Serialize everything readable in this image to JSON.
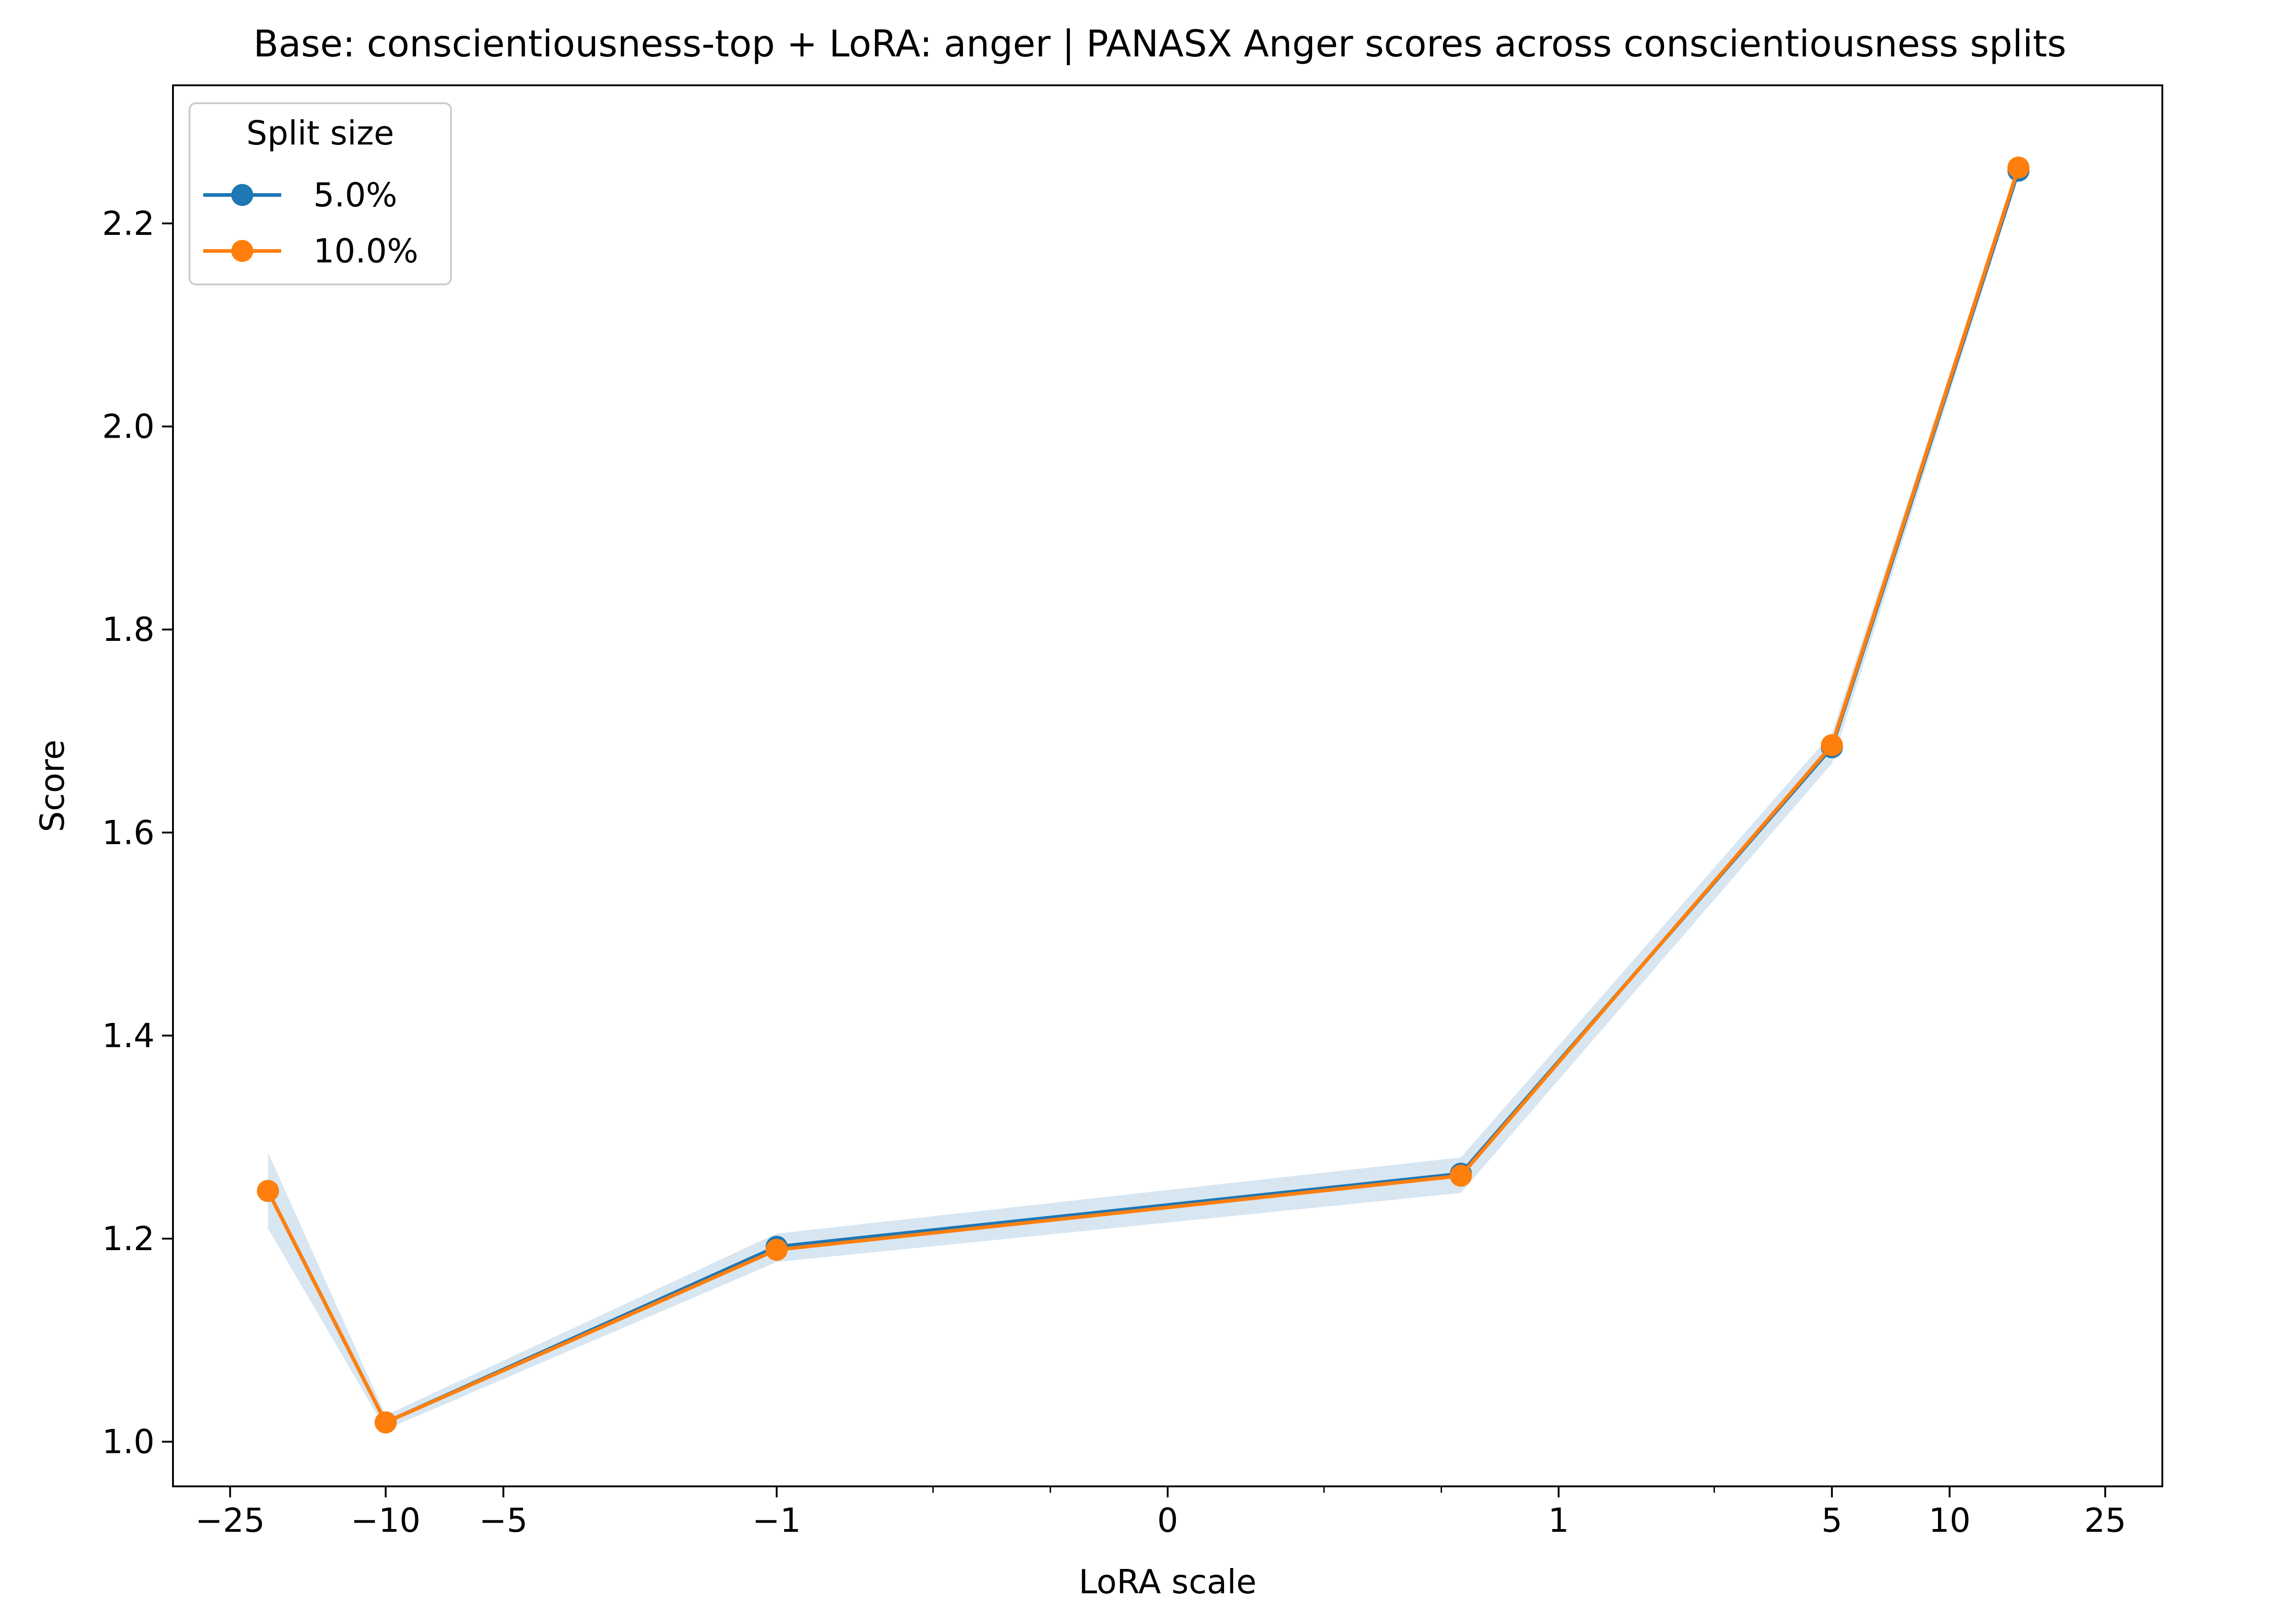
{
  "chart_data": {
    "type": "line",
    "title": "Base: conscientiousness-top + LoRA: anger | PANASX Anger scores across conscientiousness splits",
    "xlabel": "LoRA scale",
    "ylabel": "Score",
    "x_scale": "symlog",
    "x_ticks": [
      {
        "value": -25,
        "label": "−25"
      },
      {
        "value": -10,
        "label": "−10"
      },
      {
        "value": -5,
        "label": "−5"
      },
      {
        "value": -1,
        "label": "−1"
      },
      {
        "value": 0,
        "label": "0"
      },
      {
        "value": 1,
        "label": "1"
      },
      {
        "value": 5,
        "label": "5"
      },
      {
        "value": 10,
        "label": "10"
      },
      {
        "value": 25,
        "label": "25"
      }
    ],
    "ylim": [
      0.956,
      2.336
    ],
    "y_ticks": [
      {
        "value": 1.0,
        "label": "1.0"
      },
      {
        "value": 1.2,
        "label": "1.2"
      },
      {
        "value": 1.4,
        "label": "1.4"
      },
      {
        "value": 1.6,
        "label": "1.6"
      },
      {
        "value": 1.8,
        "label": "1.8"
      },
      {
        "value": 2.0,
        "label": "2.0"
      },
      {
        "value": 2.2,
        "label": "2.2"
      }
    ],
    "grid": false,
    "legend": {
      "title": "Split size",
      "position": "top-left"
    },
    "x": [
      -20,
      -10,
      -1,
      0.75,
      5,
      15
    ],
    "series": [
      {
        "name": "5.0%",
        "color": "#1f77b4",
        "values": [
          1.247,
          1.019,
          1.192,
          1.264,
          1.684,
          2.252
        ],
        "band_low": [
          1.21,
          1.012,
          1.177,
          1.245,
          1.668,
          2.245
        ],
        "band_high": [
          1.285,
          1.026,
          1.205,
          1.28,
          1.698,
          2.26
        ]
      },
      {
        "name": "10.0%",
        "color": "#ff7f0e",
        "values": [
          1.247,
          1.019,
          1.189,
          1.262,
          1.686,
          2.255
        ]
      }
    ]
  }
}
